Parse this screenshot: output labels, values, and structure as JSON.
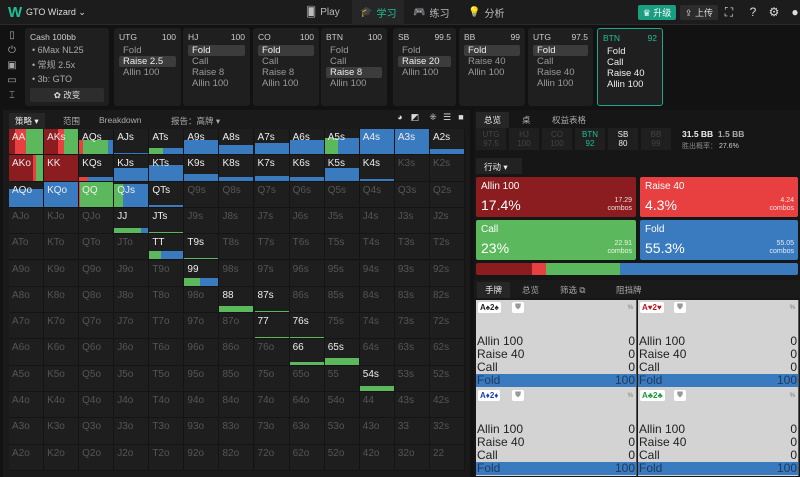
{
  "colors": {
    "allin": "#8b1c1f",
    "raise": "#e84040",
    "call": "#5cb85c",
    "fold": "#3a7abf",
    "accent": "#1fa58a"
  },
  "topbar": {
    "logo": "W",
    "app": "GTO Wizard ⌄",
    "nav": [
      {
        "icon": "cards-icon",
        "label": "Play"
      },
      {
        "icon": "graduation-icon",
        "label": "学习"
      },
      {
        "icon": "gamepad-icon",
        "label": "练习"
      },
      {
        "icon": "bulb-icon",
        "label": "分析"
      }
    ],
    "upgrade": "♛ 升级",
    "upload": "⇪ 上传"
  },
  "settings": {
    "title": "Cash  100bb",
    "items": [
      "• 6Max NL25",
      "• 常规 2.5x",
      "• 3b: GTO"
    ],
    "change": "✿ 改变"
  },
  "actions": [
    {
      "pos": "UTG",
      "stack": "100",
      "opts": [
        "Fold",
        "Raise 2.5",
        "Allin 100"
      ],
      "sel": 1
    },
    {
      "pos": "HJ",
      "stack": "100",
      "opts": [
        "Fold",
        "Call",
        "Raise 8",
        "Allin 100"
      ],
      "sel": 0
    },
    {
      "pos": "CO",
      "stack": "100",
      "opts": [
        "Fold",
        "Call",
        "Raise 8",
        "Allin 100"
      ],
      "sel": 0
    },
    {
      "pos": "BTN",
      "stack": "100",
      "opts": [
        "Fold",
        "Call",
        "Raise 8",
        "Allin 100"
      ],
      "sel": 2
    },
    {
      "pos": "SB",
      "stack": "99.5",
      "opts": [
        "Fold",
        "Raise 20",
        "Allin 100"
      ],
      "sel": 1
    },
    {
      "pos": "BB",
      "stack": "99",
      "opts": [
        "Fold",
        "Raise 40",
        "Allin 100"
      ],
      "sel": 0
    },
    {
      "pos": "UTG",
      "stack": "97.5",
      "opts": [
        "Fold",
        "Call",
        "Raise 40",
        "Allin 100"
      ],
      "sel": 0
    },
    {
      "pos": "BTN",
      "stack": "92",
      "opts": [
        "Fold",
        "Call",
        "Raise 40",
        "Allin 100"
      ],
      "sel": -1,
      "current": true
    }
  ],
  "left": {
    "tabs": [
      "策略 ▾",
      "范围",
      "Breakdown",
      "报告：高牌 ▾"
    ]
  },
  "grid": {
    "hands": [
      [
        "AA",
        "AKs",
        "AQs",
        "AJs",
        "ATs",
        "A9s",
        "A8s",
        "A7s",
        "A6s",
        "A5s",
        "A4s",
        "A3s",
        "A2s"
      ],
      [
        "AKo",
        "KK",
        "KQs",
        "KJs",
        "KTs",
        "K9s",
        "K8s",
        "K7s",
        "K6s",
        "K5s",
        "K4s",
        "K3s",
        "K2s"
      ],
      [
        "AQo",
        "KQo",
        "QQ",
        "QJs",
        "QTs",
        "Q9s",
        "Q8s",
        "Q7s",
        "Q6s",
        "Q5s",
        "Q4s",
        "Q3s",
        "Q2s"
      ],
      [
        "AJo",
        "KJo",
        "QJo",
        "JJ",
        "JTs",
        "J9s",
        "J8s",
        "J7s",
        "J6s",
        "J5s",
        "J4s",
        "J3s",
        "J2s"
      ],
      [
        "ATo",
        "KTo",
        "QTo",
        "JTo",
        "TT",
        "T9s",
        "T8s",
        "T7s",
        "T6s",
        "T5s",
        "T4s",
        "T3s",
        "T2s"
      ],
      [
        "A9o",
        "K9o",
        "Q9o",
        "J9o",
        "T9o",
        "99",
        "98s",
        "97s",
        "96s",
        "95s",
        "94s",
        "93s",
        "92s"
      ],
      [
        "A8o",
        "K8o",
        "Q8o",
        "J8o",
        "T8o",
        "98o",
        "88",
        "87s",
        "86s",
        "85s",
        "84s",
        "83s",
        "82s"
      ],
      [
        "A7o",
        "K7o",
        "Q7o",
        "J7o",
        "T7o",
        "97o",
        "87o",
        "77",
        "76s",
        "75s",
        "74s",
        "73s",
        "72s"
      ],
      [
        "A6o",
        "K6o",
        "Q6o",
        "J6o",
        "T6o",
        "96o",
        "86o",
        "76o",
        "66",
        "65s",
        "64s",
        "63s",
        "62s"
      ],
      [
        "A5o",
        "K5o",
        "Q5o",
        "J5o",
        "T5o",
        "95o",
        "85o",
        "75o",
        "65o",
        "55",
        "54s",
        "53s",
        "52s"
      ],
      [
        "A4o",
        "K4o",
        "Q4o",
        "J4o",
        "T4o",
        "94o",
        "84o",
        "74o",
        "64o",
        "54o",
        "44",
        "43s",
        "42s"
      ],
      [
        "A3o",
        "K3o",
        "Q3o",
        "J3o",
        "T3o",
        "93o",
        "83o",
        "73o",
        "63o",
        "53o",
        "43o",
        "33",
        "32s"
      ],
      [
        "A2o",
        "K2o",
        "Q2o",
        "J2o",
        "T2o",
        "92o",
        "82o",
        "72o",
        "62o",
        "52o",
        "42o",
        "32o",
        "22"
      ]
    ],
    "strategy": {
      "AA": {
        "w": 1,
        "f": [
          0.17,
          0.34,
          0.49,
          0
        ]
      },
      "AKs": {
        "w": 1,
        "f": [
          0.4,
          0.2,
          0.4,
          0
        ]
      },
      "AQs": {
        "w": 0.55,
        "f": [
          0,
          0.1,
          0.75,
          0.15
        ]
      },
      "AJs": {
        "w": 0.02,
        "f": [
          0,
          0,
          0,
          1
        ]
      },
      "ATs": {
        "w": 0.25,
        "f": [
          0,
          0,
          0.4,
          0.6
        ]
      },
      "A9s": {
        "w": 0.55,
        "f": [
          0,
          0,
          0,
          1
        ]
      },
      "A8s": {
        "w": 0.35,
        "f": [
          0,
          0,
          0,
          1
        ]
      },
      "A7s": {
        "w": 0.45,
        "f": [
          0,
          0,
          0,
          1
        ]
      },
      "A6s": {
        "w": 0.55,
        "f": [
          0,
          0,
          0,
          1
        ]
      },
      "A5s": {
        "w": 0.65,
        "f": [
          0,
          0,
          0.4,
          0.6
        ]
      },
      "A4s": {
        "w": 1,
        "f": [
          0,
          0,
          0,
          1
        ]
      },
      "A3s": {
        "w": 1,
        "f": [
          0,
          0,
          0,
          1
        ]
      },
      "A2s": {
        "w": 0.2,
        "f": [
          0,
          0,
          0,
          1
        ]
      },
      "AKo": {
        "w": 1,
        "f": [
          0.7,
          0.1,
          0.2,
          0
        ]
      },
      "KK": {
        "w": 1,
        "f": [
          1,
          0,
          0,
          0
        ]
      },
      "KQs": {
        "w": 0.15,
        "f": [
          0,
          0.25,
          0,
          0.75
        ]
      },
      "KJs": {
        "w": 0.5,
        "f": [
          0,
          0,
          0,
          1
        ]
      },
      "KTs": {
        "w": 0.6,
        "f": [
          0,
          0,
          0,
          1
        ]
      },
      "K9s": {
        "w": 0.25,
        "f": [
          0,
          0,
          0,
          1
        ]
      },
      "K8s": {
        "w": 0.15,
        "f": [
          0,
          0,
          0,
          1
        ]
      },
      "K7s": {
        "w": 0.2,
        "f": [
          0,
          0,
          0,
          1
        ]
      },
      "K6s": {
        "w": 0.15,
        "f": [
          0,
          0,
          0,
          1
        ]
      },
      "K5s": {
        "w": 0.5,
        "f": [
          0,
          0,
          0,
          1
        ]
      },
      "K4s": {
        "w": 0.02,
        "f": [
          0,
          0,
          0,
          1
        ]
      },
      "AQo": {
        "w": 0.7,
        "f": [
          0,
          0,
          0,
          1
        ]
      },
      "KQo": {
        "w": 1,
        "f": [
          0,
          0,
          0,
          1
        ]
      },
      "QQ": {
        "w": 1,
        "f": [
          0,
          0.03,
          0.97,
          0
        ]
      },
      "QJs": {
        "w": 0.9,
        "f": [
          0,
          0,
          0.25,
          0.75
        ]
      },
      "QTs": {
        "w": 0.04,
        "f": [
          0,
          0,
          0,
          1
        ]
      },
      "JJ": {
        "w": 0.2,
        "f": [
          0,
          0,
          0.8,
          0.2
        ]
      },
      "JTs": {
        "w": 0.04,
        "f": [
          0,
          0,
          1,
          0
        ]
      },
      "TT": {
        "w": 0.35,
        "f": [
          0,
          0,
          0.35,
          0.65
        ]
      },
      "T9s": {
        "w": 0.04,
        "f": [
          0,
          0,
          1,
          0
        ]
      },
      "99": {
        "w": 0.3,
        "f": [
          0,
          0,
          0.45,
          0.55
        ]
      },
      "88": {
        "w": 0.25,
        "f": [
          0,
          0,
          1,
          0
        ]
      },
      "87s": {
        "w": 0.04,
        "f": [
          0,
          0,
          1,
          0
        ]
      },
      "77": {
        "w": 0.04,
        "f": [
          0,
          0,
          1,
          0
        ]
      },
      "76s": {
        "w": 0.04,
        "f": [
          0,
          0,
          1,
          0
        ]
      },
      "66": {
        "w": 0.12,
        "f": [
          0,
          0,
          1,
          0
        ]
      },
      "65s": {
        "w": 0.25,
        "f": [
          0,
          0,
          1,
          0
        ]
      },
      "54s": {
        "w": 0.2,
        "f": [
          0,
          0,
          1,
          0
        ]
      }
    }
  },
  "right": {
    "tabs": [
      "总览",
      "桌",
      "权益表格"
    ],
    "positions": [
      {
        "p": "UTG",
        "s": "97.5"
      },
      {
        "p": "HJ",
        "s": "100"
      },
      {
        "p": "CO",
        "s": "100"
      },
      {
        "p": "BTN",
        "s": "92",
        "cur": true
      },
      {
        "p": "SB",
        "s": "80",
        "act": true
      },
      {
        "p": "BB",
        "s": "99"
      }
    ],
    "pot": "31.5 BB",
    "bet": "1.5 BB",
    "eqlabel": "胜出概率：",
    "eq": "27.6%",
    "dropdown": "行动 ▾",
    "summary": [
      {
        "name": "Allin 100",
        "pct": "17.4%",
        "combos": "17.29",
        "unit": "combos",
        "color": "#8b1c1f",
        "v": 17.4
      },
      {
        "name": "Raise 40",
        "pct": "4.3%",
        "combos": "4.24",
        "unit": "combos",
        "color": "#e84040",
        "v": 4.3
      },
      {
        "name": "Call",
        "pct": "23%",
        "combos": "22.91",
        "unit": "combos",
        "color": "#5cb85c",
        "v": 23
      },
      {
        "name": "Fold",
        "pct": "55.3%",
        "combos": "55.05",
        "unit": "combos",
        "color": "#3a7abf",
        "v": 55.3
      }
    ],
    "tabs2": [
      "手牌",
      "总览",
      "筛选 ⧉",
      "阻挡牌"
    ],
    "hands": [
      {
        "combo": "A♠2♠",
        "color": "#222",
        "rows": [
          [
            "Allin 100",
            "0"
          ],
          [
            "Raise 40",
            "0"
          ],
          [
            "Call",
            "0"
          ],
          [
            "Fold",
            "100"
          ]
        ]
      },
      {
        "combo": "A♥2♥",
        "color": "#c0161b",
        "rows": [
          [
            "Allin 100",
            "0"
          ],
          [
            "Raise 40",
            "0"
          ],
          [
            "Call",
            "0"
          ],
          [
            "Fold",
            "100"
          ]
        ]
      },
      {
        "combo": "A♦2♦",
        "color": "#1b3fc0",
        "rows": [
          [
            "Allin 100",
            "0"
          ],
          [
            "Raise 40",
            "0"
          ],
          [
            "Call",
            "0"
          ],
          [
            "Fold",
            "100"
          ]
        ]
      },
      {
        "combo": "A♣2♣",
        "color": "#1d9a3a",
        "rows": [
          [
            "Allin 100",
            "0"
          ],
          [
            "Raise 40",
            "0"
          ],
          [
            "Call",
            "0"
          ],
          [
            "Fold",
            "100"
          ]
        ]
      }
    ],
    "pct_symbol": "%"
  }
}
